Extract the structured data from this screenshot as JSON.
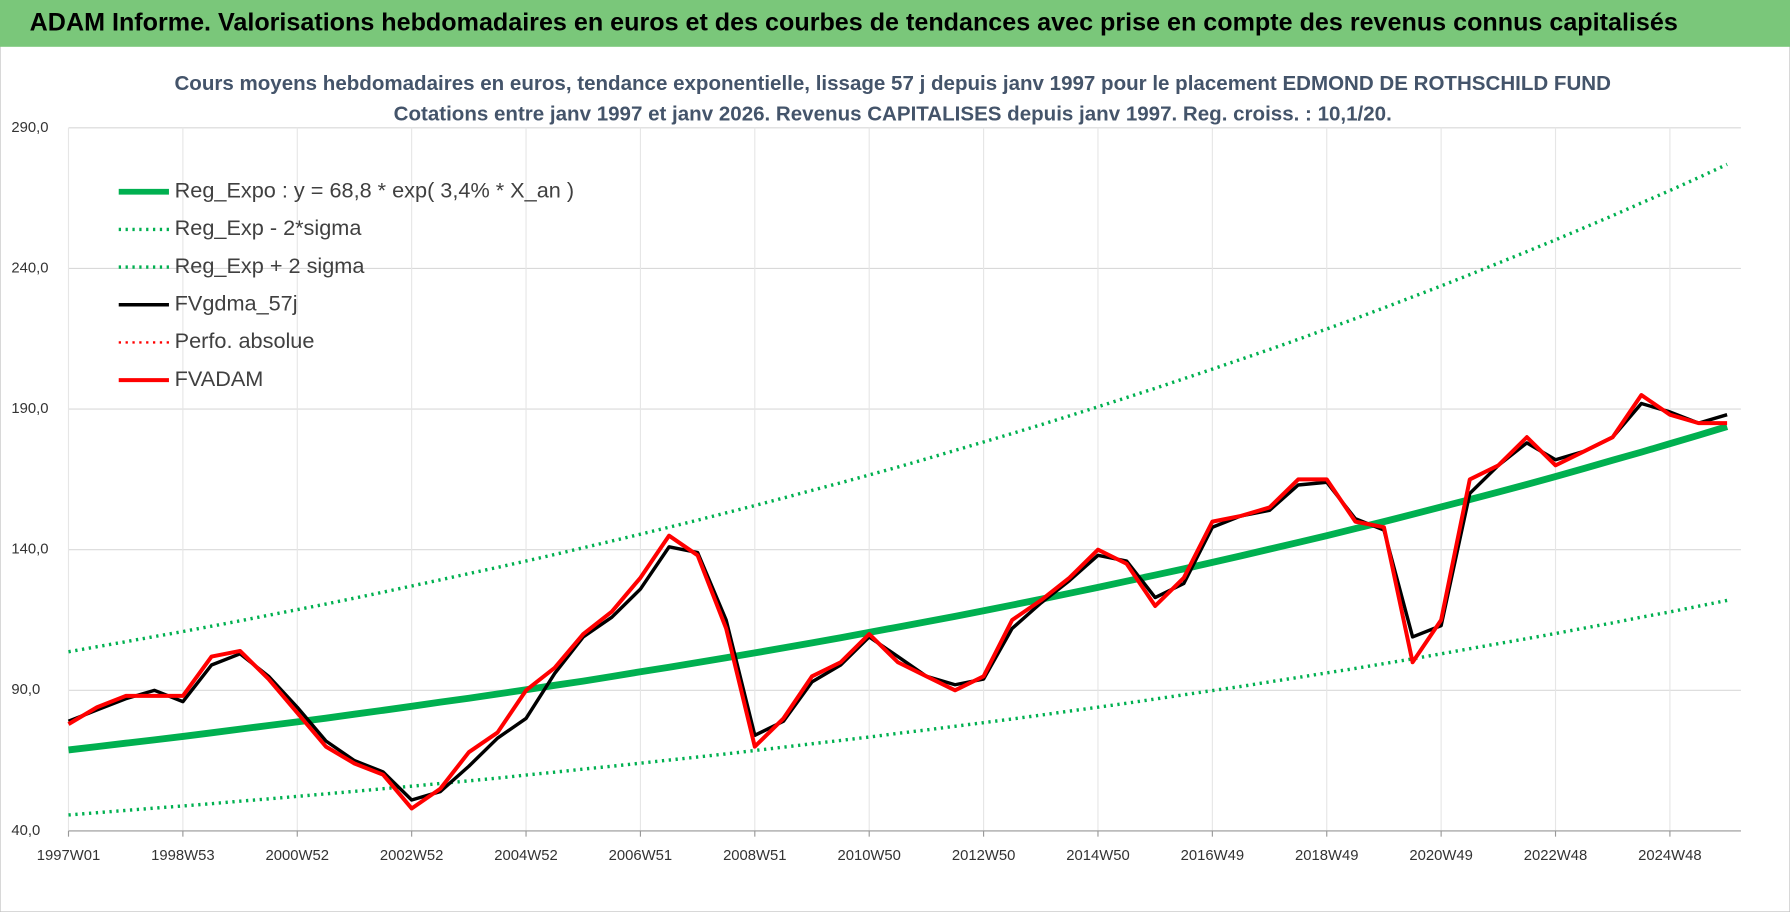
{
  "header": {
    "title": "ADAM Informe. Valorisations hebdomadaires en euros et des courbes de tendances avec prise en compte des revenus connus capitalisés"
  },
  "chart_data": {
    "type": "line",
    "title": "Cours moyens hebdomadaires en euros, tendance exponentielle, lissage 57 j depuis janv 1997  pour le placement EDMOND DE ROTHSCHILD FUND",
    "subtitle": "Cotations entre janv 1997 et janv 2026. Revenus CAPITALISES depuis janv 1997. Reg. croiss. : 10,1/20.",
    "categories": [
      "1997W01",
      null,
      null,
      null,
      "1998W53",
      null,
      null,
      null,
      "2000W52",
      null,
      null,
      null,
      "2002W52",
      null,
      null,
      null,
      "2004W52",
      null,
      null,
      null,
      "2006W51",
      null,
      null,
      null,
      "2008W51",
      null,
      null,
      null,
      "2010W50",
      null,
      null,
      null,
      "2012W50",
      null,
      null,
      null,
      "2014W50",
      null,
      null,
      null,
      "2016W49",
      null,
      null,
      null,
      "2018W49",
      null,
      null,
      null,
      "2020W49",
      null,
      null,
      null,
      "2022W48",
      null,
      null,
      null,
      "2024W48",
      null,
      null
    ],
    "ylim": [
      40,
      290
    ],
    "yticks": [
      {
        "value": 40,
        "label": "40,0"
      },
      {
        "value": 90,
        "label": "90,0"
      },
      {
        "value": 140,
        "label": "140,0"
      },
      {
        "value": 190,
        "label": "190,0"
      },
      {
        "value": 240,
        "label": "240,0"
      },
      {
        "value": 290,
        "label": "290,0"
      }
    ],
    "grid": true,
    "legend": "upper-left",
    "series": [
      {
        "name": "Reg_Expo : y = 68,8 * exp( 3,4% *  X_an )",
        "color": "#00b050",
        "style": "solid",
        "width": 6,
        "values": [
          68.8,
          70.0,
          71.2,
          72.4,
          73.6,
          74.9,
          76.2,
          77.5,
          78.8,
          80.1,
          81.5,
          82.9,
          84.3,
          85.8,
          87.2,
          88.7,
          90.2,
          91.8,
          93.3,
          94.9,
          96.6,
          98.2,
          99.9,
          101.6,
          103.3,
          105.1,
          106.9,
          108.7,
          110.6,
          112.5,
          114.4,
          116.3,
          118.3,
          120.3,
          122.4,
          124.5,
          126.6,
          128.8,
          131.0,
          133.2,
          135.5,
          137.8,
          140.2,
          142.6,
          145.0,
          147.5,
          150.0,
          152.6,
          155.2,
          157.8,
          160.5,
          163.2,
          166.0,
          168.9,
          171.8,
          174.7,
          177.7,
          180.7,
          183.8
        ]
      },
      {
        "name": "Reg_Exp - 2*sigma",
        "color": "#00b050",
        "style": "dotted",
        "width": 3,
        "values": [
          45.7,
          46.5,
          47.3,
          48.1,
          48.9,
          49.7,
          50.6,
          51.4,
          52.3,
          53.2,
          54.1,
          55.0,
          55.9,
          56.9,
          57.8,
          58.8,
          59.9,
          60.9,
          62.0,
          63.0,
          64.1,
          65.2,
          66.3,
          67.4,
          68.6,
          69.8,
          71.0,
          72.2,
          73.4,
          74.7,
          75.9,
          77.2,
          78.5,
          79.8,
          81.2,
          82.6,
          84.0,
          85.4,
          86.9,
          88.4,
          89.9,
          91.4,
          93.0,
          94.6,
          96.2,
          97.8,
          99.5,
          101.2,
          103.0,
          104.8,
          106.6,
          108.4,
          110.2,
          112.1,
          114.0,
          116.0,
          117.9,
          119.9,
          122.0
        ]
      },
      {
        "name": "Reg_Exp + 2 sigma",
        "color": "#00b050",
        "style": "dotted",
        "width": 3,
        "values": [
          103.7,
          105.5,
          107.3,
          109.1,
          110.9,
          112.8,
          114.7,
          116.7,
          118.7,
          120.7,
          122.8,
          124.9,
          127.1,
          129.3,
          131.5,
          133.7,
          136.0,
          138.3,
          140.7,
          143.1,
          145.5,
          148.0,
          150.5,
          153.1,
          155.7,
          158.4,
          161.1,
          163.8,
          166.6,
          169.4,
          172.3,
          175.3,
          178.3,
          181.3,
          184.4,
          187.6,
          190.8,
          194.1,
          197.4,
          200.8,
          204.2,
          207.7,
          211.2,
          214.8,
          218.5,
          222.2,
          226.0,
          229.9,
          233.8,
          237.8,
          241.9,
          246.0,
          250.2,
          254.5,
          258.8,
          263.3,
          267.7,
          272.3,
          277.0
        ]
      },
      {
        "name": "FVgdma_57j",
        "color": "#000000",
        "style": "solid",
        "width": 3,
        "values": [
          79,
          83,
          87,
          90,
          86,
          99,
          103,
          95,
          84,
          72,
          65,
          61,
          51,
          54,
          63,
          73,
          80,
          96,
          109,
          116,
          126,
          141,
          139,
          115,
          74,
          79,
          93,
          99,
          109,
          102,
          95,
          92,
          94,
          112,
          121,
          129,
          138,
          136,
          123,
          128,
          148,
          152,
          154,
          163,
          164,
          151,
          147,
          109,
          113,
          160,
          170,
          178,
          172,
          175,
          180,
          192,
          189,
          185,
          188
        ]
      },
      {
        "name": "Perfo. absolue",
        "color": "#ff0000",
        "style": "dotted",
        "width": 2,
        "values": [
          null,
          null,
          null,
          null,
          null,
          null,
          null,
          null,
          null,
          null,
          null,
          null,
          null,
          null,
          null,
          null,
          null,
          null,
          null,
          null,
          null,
          null,
          null,
          null,
          null,
          null,
          null,
          null,
          null,
          null,
          null,
          null,
          null,
          null,
          null,
          null,
          null,
          null,
          null,
          null,
          null,
          null,
          null,
          null,
          null,
          null,
          null,
          null,
          null,
          null,
          null,
          null,
          null,
          null,
          null,
          null,
          null,
          null,
          null
        ]
      },
      {
        "name": "FVADAM",
        "color": "#ff0000",
        "style": "solid",
        "width": 3.5,
        "values": [
          78,
          84,
          88,
          88,
          88,
          102,
          104,
          94,
          82,
          70,
          64,
          60,
          48,
          55,
          68,
          75,
          90,
          98,
          110,
          118,
          130,
          145,
          138,
          112,
          70,
          80,
          95,
          100,
          110,
          100,
          95,
          90,
          95,
          115,
          122,
          130,
          140,
          135,
          120,
          130,
          150,
          152,
          155,
          165,
          165,
          150,
          148,
          100,
          115,
          165,
          170,
          180,
          170,
          175,
          180,
          195,
          188,
          185,
          185
        ]
      }
    ]
  }
}
